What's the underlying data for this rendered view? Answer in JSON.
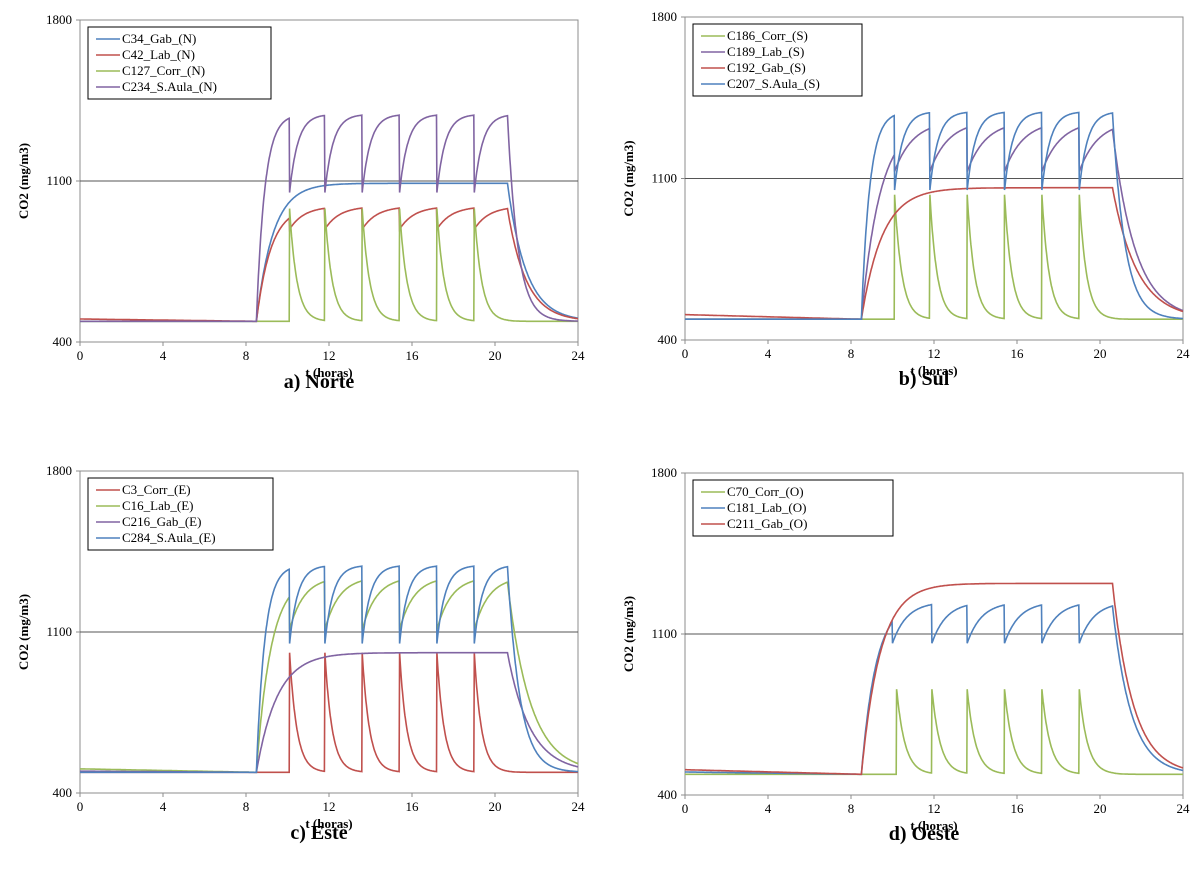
{
  "chart_data": [
    {
      "type": "line",
      "caption": "a) Norte",
      "xlabel": "t (horas)",
      "ylabel": "CO2 (mg/m3)",
      "xlim": [
        0,
        24
      ],
      "ylim": [
        400,
        1800
      ],
      "xticks": [
        "0",
        "4",
        "8",
        "12",
        "16",
        "20",
        "24"
      ],
      "yticks": [
        "400",
        "1100",
        "1800"
      ],
      "reference_line": 1100,
      "legend_position": "top-left",
      "series": [
        {
          "name": "C34_Gab_(N)",
          "color": "#4f81bd",
          "model": {
            "kind": "smooth",
            "base": 490,
            "start": 490,
            "t_on": 8.5,
            "t_off": 20.6,
            "level": 1090,
            "tau": 0.8,
            "tau_off": 0.9
          }
        },
        {
          "name": "C42_Lab_(N)",
          "color": "#c0504d",
          "model": {
            "kind": "sawtooth",
            "base": 490,
            "start": 500,
            "t_on": 8.5,
            "t_off": 20.6,
            "fill": 1,
            "peak": 990,
            "trough": 890,
            "tau_rise": 0.7,
            "tau_off": 0.9,
            "breaks": [
              10.1,
              11.8,
              13.6,
              15.4,
              17.2,
              19.0
            ]
          }
        },
        {
          "name": "C127_Corr_(N)",
          "color": "#9bbb59",
          "model": {
            "kind": "pulse",
            "base": 490,
            "start": 490,
            "t_on": 8.5,
            "t_off": 20.6,
            "t_pre": 10.1,
            "peak": 980,
            "tau_decay": 0.35,
            "breaks": [
              10.1,
              11.8,
              13.6,
              15.4,
              17.2,
              19.0
            ]
          }
        },
        {
          "name": "C234_S.Aula_(N)",
          "color": "#8064a2",
          "model": {
            "kind": "sawtooth",
            "base": 490,
            "start": 490,
            "t_on": 8.5,
            "t_off": 20.6,
            "fill": 0,
            "peak": 1390,
            "trough": 1050,
            "tau_rise": 0.4,
            "tau_off": 0.5,
            "breaks": [
              10.1,
              11.8,
              13.6,
              15.4,
              17.2,
              19.0
            ]
          }
        }
      ]
    },
    {
      "type": "line",
      "caption": "b) Sul",
      "xlabel": "t (horas)",
      "ylabel": "CO2 (mg/m3)",
      "xlim": [
        0,
        24
      ],
      "ylim": [
        400,
        1800
      ],
      "xticks": [
        "0",
        "4",
        "8",
        "12",
        "16",
        "20",
        "24"
      ],
      "yticks": [
        "400",
        "1100",
        "1800"
      ],
      "reference_line": 1100,
      "legend_position": "top-left",
      "series": [
        {
          "name": "C186_Corr_(S)",
          "color": "#9bbb59",
          "model": {
            "kind": "pulse",
            "base": 490,
            "start": 490,
            "t_on": 8.5,
            "t_off": 20.6,
            "t_pre": 10.1,
            "peak": 1030,
            "tau_decay": 0.35,
            "breaks": [
              10.1,
              11.8,
              13.6,
              15.4,
              17.2,
              19.0
            ]
          }
        },
        {
          "name": "C189_Lab_(S)",
          "color": "#8064a2",
          "model": {
            "kind": "sawtooth",
            "base": 490,
            "start": 490,
            "t_on": 8.5,
            "t_off": 20.6,
            "fill": 0,
            "peak": 1350,
            "trough": 1130,
            "tau_rise": 0.9,
            "tau_off": 1.1,
            "breaks": [
              10.1,
              11.8,
              13.6,
              15.4,
              17.2,
              19.0
            ]
          }
        },
        {
          "name": "C192_Gab_(S)",
          "color": "#c0504d",
          "model": {
            "kind": "smooth",
            "base": 490,
            "start": 510,
            "t_on": 8.5,
            "t_off": 20.6,
            "level": 1060,
            "tau": 1.0,
            "tau_off": 1.2
          }
        },
        {
          "name": "C207_S.Aula_(S)",
          "color": "#4f81bd",
          "model": {
            "kind": "sawtooth",
            "base": 490,
            "start": 490,
            "t_on": 8.5,
            "t_off": 20.6,
            "fill": 0,
            "peak": 1390,
            "trough": 1050,
            "tau_rise": 0.4,
            "tau_off": 0.6,
            "breaks": [
              10.1,
              11.8,
              13.6,
              15.4,
              17.2,
              19.0
            ]
          }
        }
      ]
    },
    {
      "type": "line",
      "caption": "c) Este",
      "xlabel": "t (horas)",
      "ylabel": "CO2 (mg/m3)",
      "xlim": [
        0,
        24
      ],
      "ylim": [
        400,
        1800
      ],
      "xticks": [
        "0",
        "4",
        "8",
        "12",
        "16",
        "20",
        "24"
      ],
      "yticks": [
        "400",
        "1100",
        "1800"
      ],
      "reference_line": 1100,
      "legend_position": "top-left",
      "series": [
        {
          "name": "C3_Corr_(E)",
          "color": "#c0504d",
          "model": {
            "kind": "pulse",
            "base": 490,
            "start": 490,
            "t_on": 8.5,
            "t_off": 20.6,
            "t_pre": 10.1,
            "peak": 1010,
            "tau_decay": 0.35,
            "breaks": [
              10.1,
              11.8,
              13.6,
              15.4,
              17.2,
              19.0
            ]
          }
        },
        {
          "name": "C16_Lab_(E)",
          "color": "#9bbb59",
          "model": {
            "kind": "sawtooth",
            "base": 490,
            "start": 505,
            "t_on": 8.5,
            "t_off": 20.6,
            "fill": 0,
            "peak": 1340,
            "trough": 1110,
            "tau_rise": 0.7,
            "tau_off": 1.1,
            "breaks": [
              10.1,
              11.8,
              13.6,
              15.4,
              17.2,
              19.0
            ]
          }
        },
        {
          "name": "C216_Gab_(E)",
          "color": "#8064a2",
          "model": {
            "kind": "smooth",
            "base": 490,
            "start": 495,
            "t_on": 8.5,
            "t_off": 20.6,
            "level": 1010,
            "tau": 1.0,
            "tau_off": 1.1
          }
        },
        {
          "name": "C284_S.Aula_(E)",
          "color": "#4f81bd",
          "model": {
            "kind": "sawtooth",
            "base": 490,
            "start": 490,
            "t_on": 8.5,
            "t_off": 20.6,
            "fill": 0,
            "peak": 1390,
            "trough": 1050,
            "tau_rise": 0.4,
            "tau_off": 0.6,
            "breaks": [
              10.1,
              11.8,
              13.6,
              15.4,
              17.2,
              19.0
            ]
          }
        }
      ]
    },
    {
      "type": "line",
      "caption": "d) Oeste",
      "xlabel": "t (horas)",
      "ylabel": "CO2 (mg/m3)",
      "xlim": [
        0,
        24
      ],
      "ylim": [
        400,
        1800
      ],
      "xticks": [
        "0",
        "4",
        "8",
        "12",
        "16",
        "20",
        "24"
      ],
      "yticks": [
        "400",
        "1100",
        "1800"
      ],
      "reference_line": 1100,
      "legend_position": "top-left",
      "series": [
        {
          "name": "C70_Corr_(O)",
          "color": "#9bbb59",
          "model": {
            "kind": "pulse",
            "base": 490,
            "start": 490,
            "t_on": 8.5,
            "t_off": 20.6,
            "t_pre": 10.2,
            "peak": 860,
            "tau_decay": 0.4,
            "breaks": [
              10.2,
              11.9,
              13.6,
              15.4,
              17.2,
              19.0
            ]
          }
        },
        {
          "name": "C181_Lab_(O)",
          "color": "#4f81bd",
          "model": {
            "kind": "sawtooth",
            "base": 490,
            "start": 500,
            "t_on": 8.5,
            "t_off": 20.6,
            "fill": 0,
            "peak": 1240,
            "trough": 1060,
            "tau_rise": 0.7,
            "tau_off": 0.9,
            "breaks": [
              10.0,
              11.9,
              13.6,
              15.4,
              17.2,
              19.0
            ]
          }
        },
        {
          "name": "C211_Gab_(O)",
          "color": "#c0504d",
          "model": {
            "kind": "smooth",
            "base": 490,
            "start": 510,
            "t_on": 8.5,
            "t_off": 20.6,
            "level": 1320,
            "tau": 0.9,
            "tau_off": 1.0
          }
        }
      ]
    }
  ]
}
